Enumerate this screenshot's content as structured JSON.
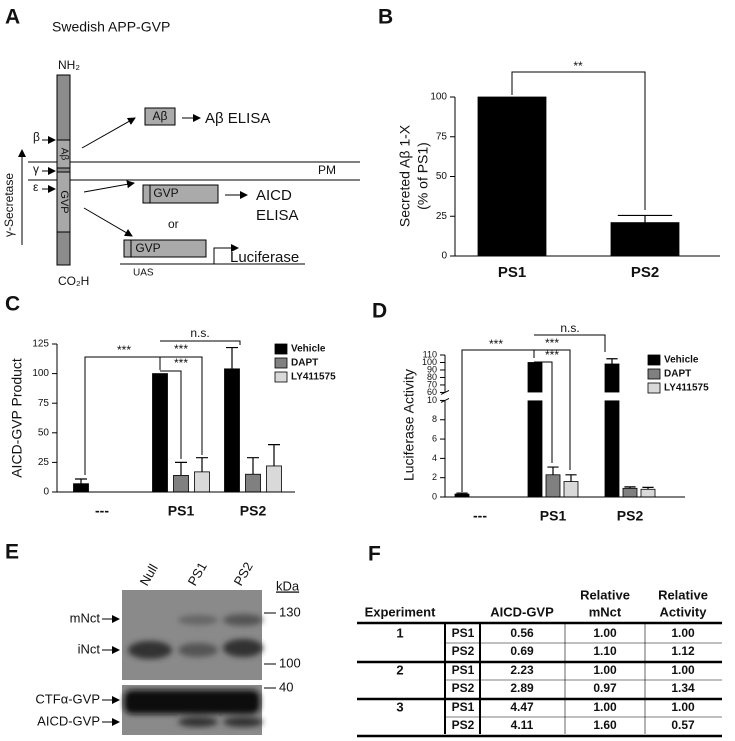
{
  "panel_labels": [
    "A",
    "B",
    "C",
    "D",
    "E",
    "F"
  ],
  "diagram": {
    "title": "Swedish APP-GVP",
    "n_term": "NH₂",
    "c_term": "CO₂H",
    "abeta_segment": "Aβ",
    "gvp_segment": "GVP",
    "sites": [
      "β",
      "γ",
      "ε"
    ],
    "enzyme": "γ-Secretase",
    "membrane": "PM",
    "abeta_box": "Aβ",
    "abeta_assay": "Aβ ELISA",
    "gvp_box": "GVP",
    "aicd_assay": [
      "AICD",
      "ELISA"
    ],
    "or": "or",
    "reporter_box": "GVP",
    "reporter": "Luciferase",
    "promoter": "UAS"
  },
  "chart_data": [
    {
      "type": "bar",
      "categories": [
        "PS1",
        "PS2"
      ],
      "values": [
        100,
        21
      ],
      "errors": [
        0,
        4.5
      ],
      "color": "#000000",
      "y_label": [
        "Secreted Aβ 1-X",
        "(% of PS1)"
      ],
      "ylim": [
        0,
        100
      ],
      "yticks": [
        0,
        25,
        50,
        75,
        100
      ],
      "annotations": [
        "**"
      ]
    },
    {
      "type": "bar",
      "categories": [
        "---",
        "PS1",
        "PS2"
      ],
      "series": [
        {
          "name": "Vehicle",
          "color": "#000000",
          "values": [
            7,
            100,
            104
          ],
          "errors": [
            4,
            0,
            18
          ]
        },
        {
          "name": "DAPT",
          "color": "#808080",
          "values": [
            null,
            14,
            15
          ],
          "errors": [
            null,
            11,
            14
          ]
        },
        {
          "name": "LY411575",
          "color": "#d9d9d9",
          "values": [
            null,
            17,
            22
          ],
          "errors": [
            null,
            12,
            18
          ]
        }
      ],
      "y_label": "AICD-GVP Product",
      "ylim": [
        0,
        125
      ],
      "yticks": [
        0,
        25,
        50,
        75,
        100,
        125
      ],
      "legend": "upper right",
      "annotations": [
        "***",
        "***",
        "***",
        "n.s."
      ]
    },
    {
      "type": "bar",
      "categories": [
        "---",
        "PS1",
        "PS2"
      ],
      "series": [
        {
          "name": "Vehicle",
          "color": "#000000",
          "values": [
            0.3,
            100,
            98
          ],
          "errors": [
            0.1,
            0,
            7
          ]
        },
        {
          "name": "DAPT",
          "color": "#808080",
          "values": [
            null,
            2.3,
            0.9
          ],
          "errors": [
            null,
            0.8,
            0.15
          ]
        },
        {
          "name": "LY411575",
          "color": "#d9d9d9",
          "values": [
            null,
            1.6,
            0.8
          ],
          "errors": [
            null,
            0.7,
            0.2
          ]
        }
      ],
      "y_label": "Luciferase Activity",
      "ylim": [
        0,
        110
      ],
      "y_break": [
        10,
        60
      ],
      "yticks": [
        0,
        2,
        4,
        6,
        8,
        10,
        60,
        70,
        80,
        90,
        100,
        110
      ],
      "legend": "upper right",
      "annotations": [
        "***",
        "***",
        "***",
        "n.s."
      ]
    }
  ],
  "blot": {
    "lanes": [
      "Null",
      "PS1",
      "PS2"
    ],
    "unit": "kDa",
    "markers": [
      "130",
      "100",
      "40"
    ],
    "bands": [
      "mNct",
      "iNct",
      "CTFα-GVP",
      "AICD-GVP"
    ]
  },
  "table": {
    "columns": [
      "Experiment",
      "AICD-GVP",
      [
        "Relative",
        "mNct"
      ],
      [
        "Relative",
        "Activity"
      ]
    ],
    "groups": [
      {
        "experiment": "1",
        "rows": [
          [
            "PS1",
            "0.56",
            "1.00",
            "1.00"
          ],
          [
            "PS2",
            "0.69",
            "1.10",
            "1.12"
          ]
        ]
      },
      {
        "experiment": "2",
        "rows": [
          [
            "PS1",
            "2.23",
            "1.00",
            "1.00"
          ],
          [
            "PS2",
            "2.89",
            "0.97",
            "1.34"
          ]
        ]
      },
      {
        "experiment": "3",
        "rows": [
          [
            "PS1",
            "4.47",
            "1.00",
            "1.00"
          ],
          [
            "PS2",
            "4.11",
            "1.60",
            "0.57"
          ]
        ]
      }
    ]
  }
}
